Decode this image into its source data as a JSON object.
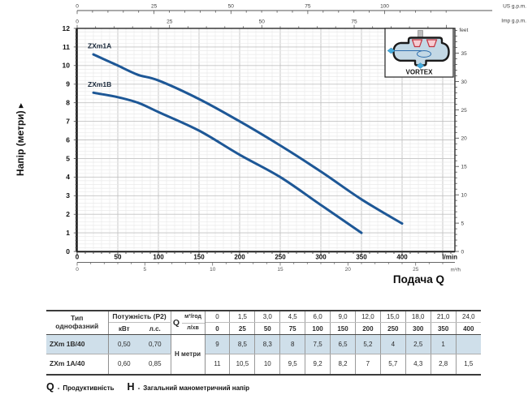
{
  "chart_data": {
    "type": "line",
    "title": "",
    "xlabel": "Подача Q",
    "ylabel": "Напір (метри)",
    "x_axis_units": {
      "primary": "l/min",
      "secondary": "m³/h",
      "top1": "US g.p.m.",
      "top2": "Imp g.p.m."
    },
    "y_axis_units": {
      "primary": "метри",
      "secondary": "feet"
    },
    "x_lmin": [
      0,
      25,
      50,
      75,
      100,
      150,
      200,
      250,
      300,
      350,
      400
    ],
    "series": [
      {
        "name": "ZXm1A",
        "model": "ZXm 1A/40",
        "head_m": [
          11,
          10.5,
          10,
          9.5,
          9.2,
          8.2,
          7,
          5.7,
          4.3,
          2.8,
          1.5
        ]
      },
      {
        "name": "ZXm1B",
        "model": "ZXm 1B/40",
        "head_m": [
          9,
          8.5,
          8.3,
          8,
          7.5,
          6.5,
          5.2,
          4,
          2.5,
          1,
          null
        ]
      }
    ],
    "axis_ticks": {
      "lmin": [
        0,
        50,
        100,
        150,
        200,
        250,
        300,
        350,
        400
      ],
      "m3h": [
        0,
        5,
        10,
        15,
        20,
        25
      ],
      "us_gpm": [
        0,
        25,
        50,
        75,
        100
      ],
      "imp_gpm": [
        0,
        25,
        50,
        75
      ],
      "meters": [
        0,
        1,
        2,
        3,
        4,
        5,
        6,
        7,
        8,
        9,
        10,
        11,
        12
      ],
      "feet": [
        0,
        5,
        10,
        15,
        20,
        25,
        30,
        35
      ]
    },
    "xlim_lmin": [
      0,
      465
    ],
    "ylim_m": [
      0,
      12
    ],
    "grid": true,
    "legend_position": "curve-labels",
    "curve_color": "#1d5796",
    "inset_label": "VORTEX"
  },
  "table": {
    "col1_header": [
      "Тип",
      "однофазний"
    ],
    "power_header": "Потужність (P2)",
    "power_units": [
      "кВт",
      "л.с."
    ],
    "q_symbol": "Q",
    "q_row1_unit": "м³/год",
    "q_row2_unit": "л/хв",
    "h_label": "Н метри",
    "q_m3h": [
      "0",
      "1,5",
      "3,0",
      "4,5",
      "6,0",
      "9,0",
      "12,0",
      "15,0",
      "18,0",
      "21,0",
      "24,0"
    ],
    "q_lmin": [
      "0",
      "25",
      "50",
      "75",
      "100",
      "150",
      "200",
      "250",
      "300",
      "350",
      "400"
    ],
    "rows": [
      {
        "model": "ZXm 1B/40",
        "kw": "0,50",
        "hp": "0,70",
        "highlight": true,
        "h_values": [
          "9",
          "8,5",
          "8,3",
          "8",
          "7,5",
          "6,5",
          "5,2",
          "4",
          "2,5",
          "1",
          ""
        ]
      },
      {
        "model": "ZXm 1A/40",
        "kw": "0,60",
        "hp": "0,85",
        "highlight": false,
        "h_values": [
          "11",
          "10,5",
          "10",
          "9,5",
          "9,2",
          "8,2",
          "7",
          "5,7",
          "4,3",
          "2,8",
          "1,5"
        ]
      }
    ]
  },
  "footer": {
    "separator": "-",
    "q_symbol": "Q",
    "q_label": "Продуктивність",
    "h_symbol": "Н",
    "h_label": "Загальний манометричний напір"
  }
}
